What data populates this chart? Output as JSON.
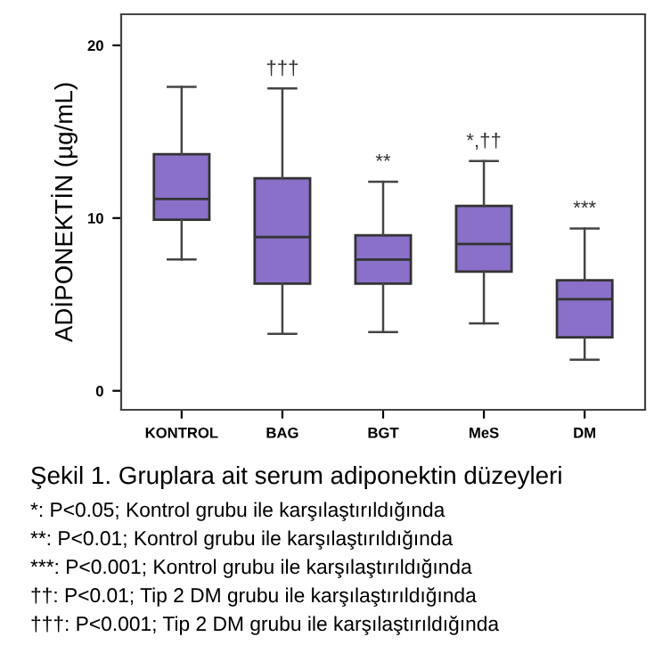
{
  "chart_data": {
    "type": "box",
    "ylabel": "ADİPONEKTİN (µg/mL)",
    "categories": [
      "KONTROL",
      "BAG",
      "BGT",
      "MeS",
      "DM"
    ],
    "color": "#8a70c8",
    "boxes": [
      {
        "low": 7.6,
        "q1": 9.9,
        "median": 11.1,
        "q3": 13.7,
        "high": 17.6
      },
      {
        "low": 3.3,
        "q1": 6.2,
        "median": 8.9,
        "q3": 12.3,
        "high": 17.5
      },
      {
        "low": 3.4,
        "q1": 6.2,
        "median": 7.6,
        "q3": 9.0,
        "high": 12.1
      },
      {
        "low": 3.9,
        "q1": 6.9,
        "median": 8.5,
        "q3": 10.7,
        "high": 13.3
      },
      {
        "low": 1.8,
        "q1": 3.1,
        "median": 5.3,
        "q3": 6.4,
        "high": 9.4
      }
    ],
    "ylim": [
      -1.1,
      21.8
    ],
    "yticks": [
      0,
      10,
      20
    ],
    "grid": false,
    "annotations": [
      {
        "text": "†††",
        "x": "BAG",
        "y": 17.5
      },
      {
        "text": "**",
        "x": "BGT",
        "y": 12.1
      },
      {
        "text": "*,††",
        "x": "MeS",
        "y": 13.3
      },
      {
        "text": "***",
        "x": "DM",
        "y": 9.4
      },
      "Şekil 1. Gruplara ait serum adiponektin düzeyleri",
      "*: P<0.05; Kontrol grubu ile karşılaştırıldığında",
      "**: P<0.01; Kontrol grubu ile karşılaştırıldığında",
      "***: P<0.001; Kontrol grubu ile karşılaştırıldığında",
      "††: P<0.01; Tip 2 DM grubu ile karşılaştırıldığında",
      "†††: P<0.001; Tip 2 DM grubu ile karşılaştırıldığında"
    ]
  }
}
